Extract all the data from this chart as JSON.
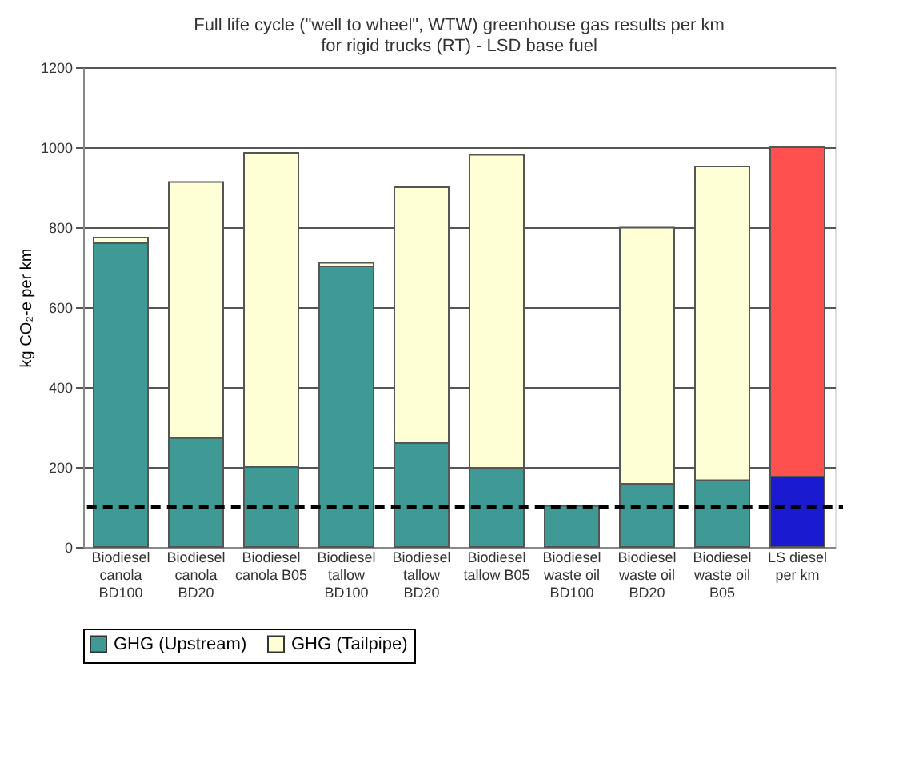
{
  "chart_data": {
    "type": "bar",
    "title": [
      "Full life cycle (\"well to wheel\", WTW) greenhouse gas results per km",
      "for rigid trucks (RT) - LSD base fuel"
    ],
    "ylabel": "kg CO₂-e per km",
    "categories": [
      "Biodiesel canola BD100",
      "Biodiesel canola BD20",
      "Biodiesel canola B05",
      "Biodiesel tallow BD100",
      "Biodiesel tallow BD20",
      "Biodiesel tallow B05",
      "Biodiesel waste oil BD100",
      "Biodiesel waste oil BD20",
      "Biodiesel waste oil B05",
      "LS diesel per km"
    ],
    "stacked": true,
    "series": [
      {
        "name": "GHG (Upstream)",
        "color": "#3f9a96",
        "colors": [
          "#3f9a96",
          "#3f9a96",
          "#3f9a96",
          "#3f9a96",
          "#3f9a96",
          "#3f9a96",
          "#3f9a96",
          "#3f9a96",
          "#3f9a96",
          "#1a1ad0"
        ],
        "values": [
          760,
          273,
          200,
          702,
          260,
          198,
          103,
          158,
          167,
          176
        ]
      },
      {
        "name": "GHG (Tailpipe)",
        "color": "#ffffd6",
        "colors": [
          "#ffffd6",
          "#ffffd6",
          "#ffffd6",
          "#ffffd6",
          "#ffffd6",
          "#ffffd6",
          "#ffffd6",
          "#ffffd6",
          "#ffffd6",
          "#ff5050"
        ],
        "values": [
          14,
          640,
          786,
          9,
          640,
          783,
          null,
          641,
          785,
          824
        ]
      }
    ],
    "ylim": [
      0,
      1200
    ],
    "yticks": [
      0,
      200,
      400,
      600,
      800,
      1000,
      1200
    ],
    "grid": "y",
    "ref_lines": [
      {
        "axis": "y",
        "value": 100,
        "line_style": "dashed",
        "color": "#000000"
      }
    ],
    "legend": "bottom"
  }
}
